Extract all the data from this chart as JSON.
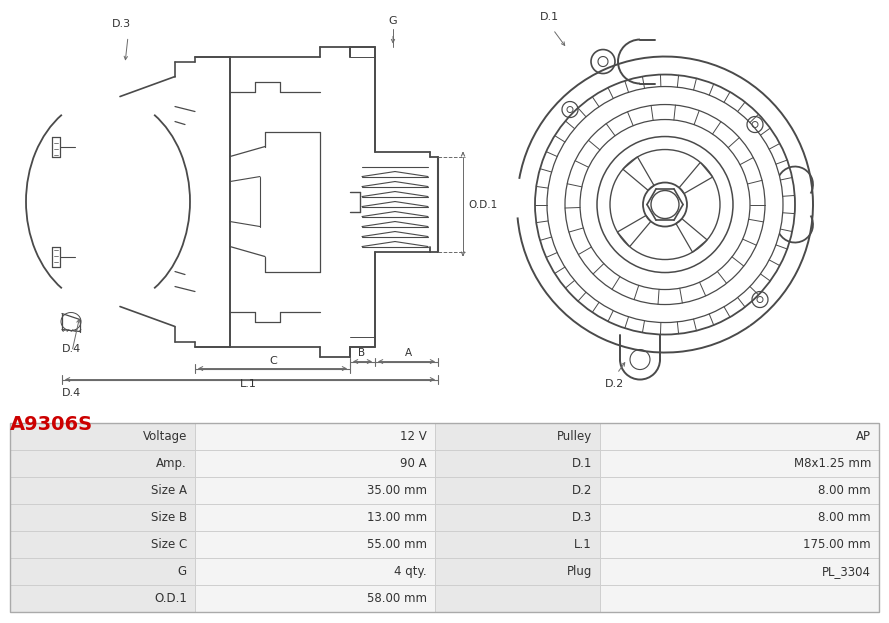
{
  "title": "A9306S",
  "title_color": "#cc0000",
  "bg_color": "#ffffff",
  "line_color": "#4a4a4a",
  "dim_color": "#6a6a6a",
  "table_label_bg": "#e8e8e8",
  "table_value_bg": "#f4f4f4",
  "table_border": "#cccccc",
  "rows": [
    [
      "Voltage",
      "12 V",
      "Pulley",
      "AP"
    ],
    [
      "Amp.",
      "90 A",
      "D.1",
      "M8x1.25 mm"
    ],
    [
      "Size A",
      "35.00 mm",
      "D.2",
      "8.00 mm"
    ],
    [
      "Size B",
      "13.00 mm",
      "D.3",
      "8.00 mm"
    ],
    [
      "Size C",
      "55.00 mm",
      "L.1",
      "175.00 mm"
    ],
    [
      "G",
      "4 qty.",
      "Plug",
      "PL_3304"
    ],
    [
      "O.D.1",
      "58.00 mm",
      "",
      ""
    ]
  ]
}
